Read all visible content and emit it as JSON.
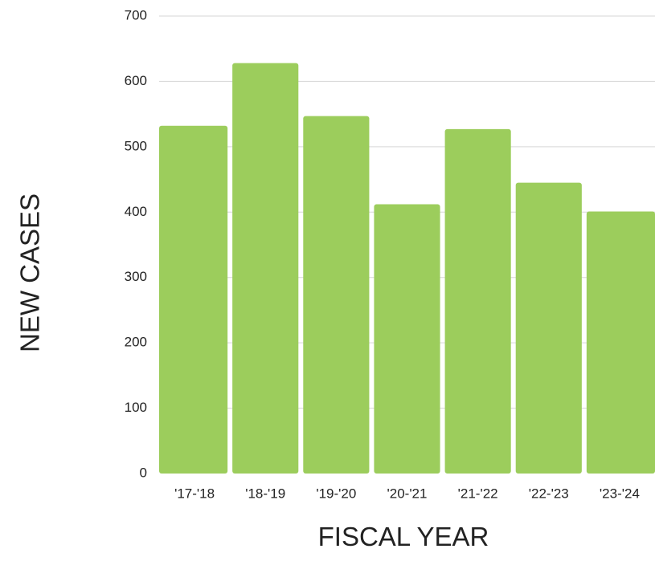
{
  "chart_data": {
    "type": "bar",
    "title": "",
    "xlabel": "FISCAL YEAR",
    "ylabel": "NEW CASES",
    "categories": [
      "'17-'18",
      "'18-'19",
      "'19-'20",
      "'20-'21",
      "'21-'22",
      "'22-'23",
      "'23-'24"
    ],
    "values": [
      532,
      628,
      547,
      412,
      527,
      445,
      401
    ],
    "ylim": [
      0,
      700
    ],
    "yticks": [
      "0",
      "100",
      "200",
      "300",
      "400",
      "500",
      "600",
      "700"
    ],
    "grid": true,
    "legend": "none",
    "colors": {
      "bar": "#9ccd5c",
      "grid": "#d6d6d6",
      "text": "#222222"
    }
  }
}
